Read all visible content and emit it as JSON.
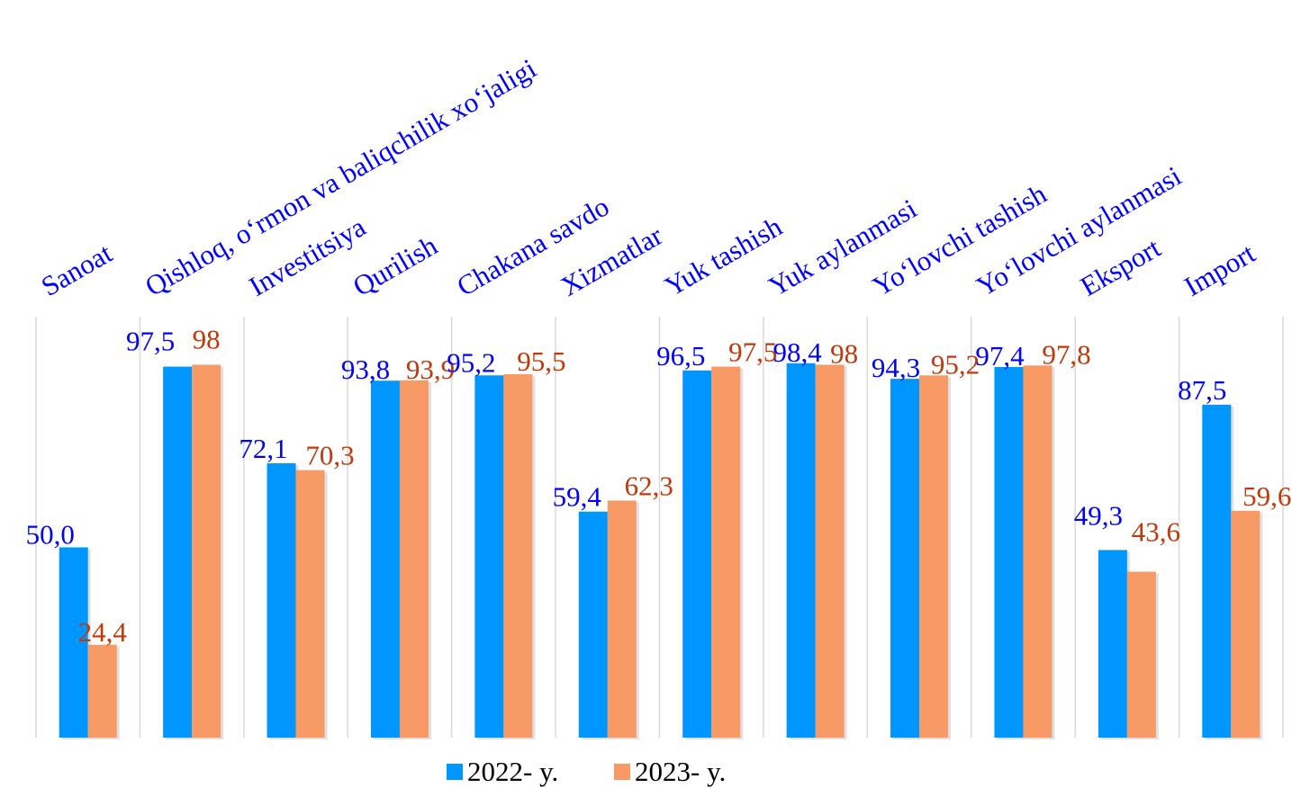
{
  "chart_data": {
    "type": "bar",
    "categories": [
      "Sanoat",
      "Qishloq, o‘rmon va baliqchilik xo‘jaligi",
      "Investitsiya",
      "Qurilish",
      "Chakana savdo",
      "Xizmatlar",
      "Yuk tashish",
      "Yuk aylanmasi",
      "Yo‘lovchi tashish",
      "Yo‘lovchi aylanmasi",
      "Eksport",
      "Import"
    ],
    "series": [
      {
        "name": "2022- y.",
        "values": [
          50.0,
          97.5,
          72.1,
          93.8,
          95.2,
          59.4,
          96.5,
          98.4,
          94.3,
          97.4,
          49.3,
          87.5
        ],
        "labels": [
          "50,0",
          "97,5",
          "72,1",
          "93,8",
          "95,2",
          "59,4",
          "96,5",
          "98,4",
          "94,3",
          "97,4",
          "49,3",
          "87,5"
        ]
      },
      {
        "name": "2023- y.",
        "values": [
          24.4,
          98,
          70.3,
          93.9,
          95.5,
          62.3,
          97.5,
          98,
          95.2,
          97.8,
          43.6,
          59.6
        ],
        "labels": [
          "24,4",
          "98",
          "70,3",
          "93,9",
          "95,5",
          "62,3",
          "97,5",
          "98",
          "95,2",
          "97,8",
          "43,6",
          "59,6"
        ]
      }
    ],
    "ylim": [
      0,
      100
    ],
    "grid": "vertical",
    "legend": "bottom-center"
  },
  "colors": {
    "series_2022": "#0096ff",
    "series_2023": "#f79a66",
    "label_2022": "#0000ff",
    "label_2023": "#c0390b",
    "category_label": "#0000ff",
    "gridline": "#d9d9d9"
  }
}
